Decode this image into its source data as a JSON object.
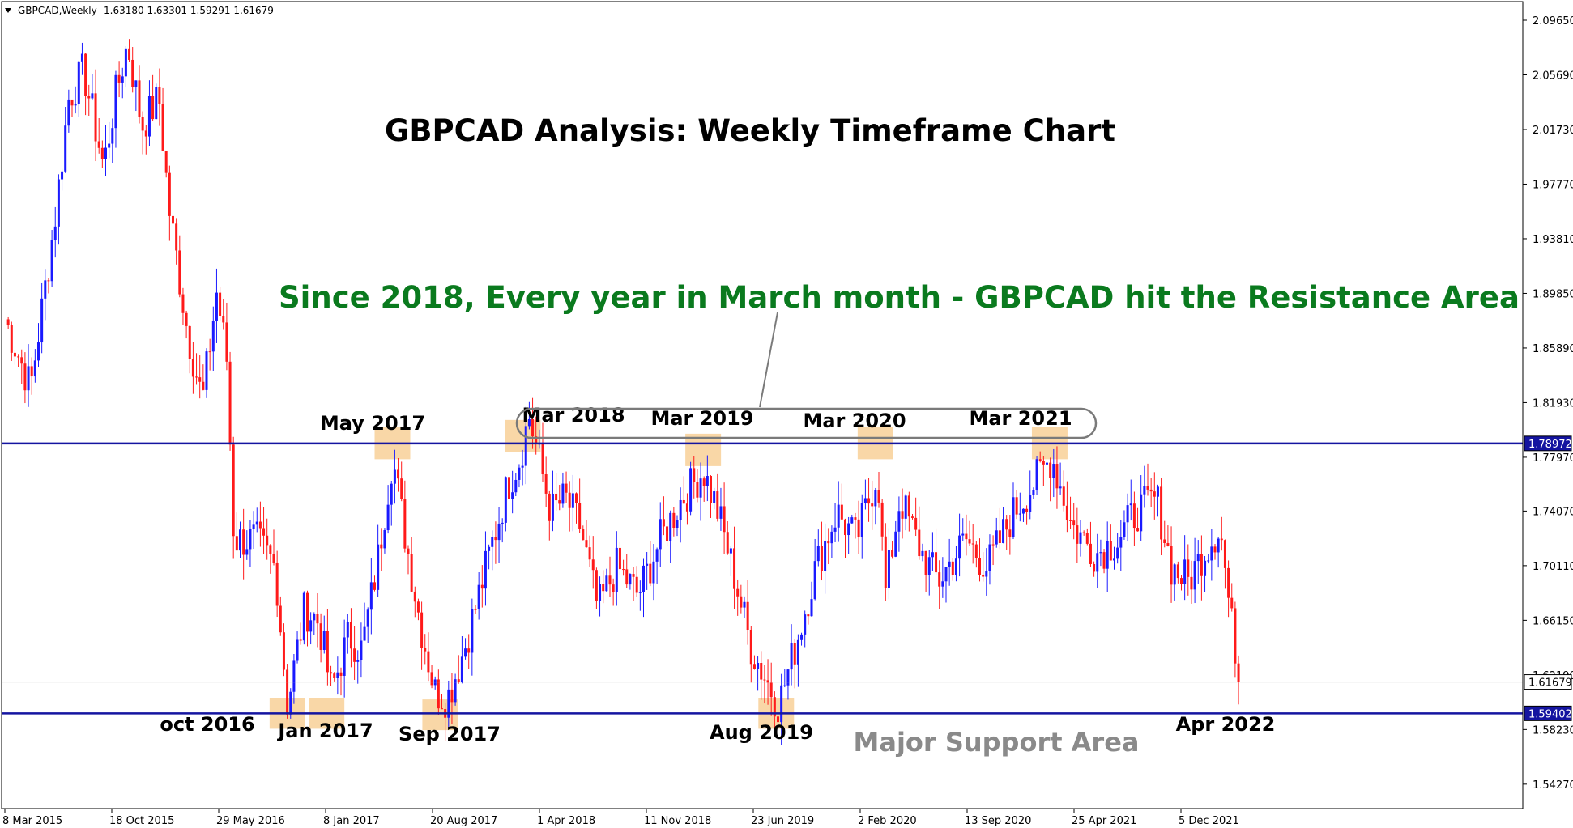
{
  "header": {
    "symbol": "GBPCAD,Weekly",
    "ohlc": "1.63180 1.63301 1.59291 1.61679"
  },
  "colors": {
    "up_candle": "#1a1aff",
    "down_candle": "#ff1a1a",
    "level_line": "#1414a0",
    "highlight_box": "#f7c98a",
    "headline_green": "#0a7a1e",
    "support_label_gray": "#8a8a8a"
  },
  "chart_data": {
    "type": "candlestick",
    "title": "GBPCAD Analysis: Weekly Timeframe Chart",
    "y_range": [
      1.525,
      2.11
    ],
    "y_ticks": [
      "2.09650",
      "2.05690",
      "2.01730",
      "1.97770",
      "1.93810",
      "1.89850",
      "1.85890",
      "1.81930",
      "1.77970",
      "1.74070",
      "1.70110",
      "1.66150",
      "1.58230",
      "1.54270"
    ],
    "x_ticks": [
      "8 Mar 2015",
      "18 Oct 2015",
      "29 May 2016",
      "8 Jan 2017",
      "20 Aug 2017",
      "1 Apr 2018",
      "11 Nov 2018",
      "23 Jun 2019",
      "2 Feb 2020",
      "13 Sep 2020",
      "25 Apr 2021",
      "5 Dec 2021"
    ],
    "price_levels": {
      "resistance": "1.78972",
      "current": "1.61679",
      "support": "1.59402",
      "current_partial_tick": "1.62190"
    },
    "price_path": [
      [
        "2015-03-08",
        1.88
      ],
      [
        "2015-05-01",
        1.83
      ],
      [
        "2015-06-20",
        1.95
      ],
      [
        "2015-07-20",
        2.04
      ],
      [
        "2015-08-20",
        2.06
      ],
      [
        "2015-10-01",
        1.99
      ],
      [
        "2015-10-25",
        2.04
      ],
      [
        "2015-11-20",
        2.08
      ],
      [
        "2015-12-20",
        2.02
      ],
      [
        "2016-01-25",
        2.04
      ],
      [
        "2016-02-15",
        1.96
      ],
      [
        "2016-03-25",
        1.87
      ],
      [
        "2016-04-25",
        1.82
      ],
      [
        "2016-05-25",
        1.9
      ],
      [
        "2016-06-15",
        1.85
      ],
      [
        "2016-06-30",
        1.72
      ],
      [
        "2016-08-15",
        1.72
      ],
      [
        "2016-09-25",
        1.7
      ],
      [
        "2016-10-20",
        1.6
      ],
      [
        "2016-11-25",
        1.67
      ],
      [
        "2016-12-25",
        1.66
      ],
      [
        "2017-01-20",
        1.61
      ],
      [
        "2017-02-25",
        1.65
      ],
      [
        "2017-03-25",
        1.64
      ],
      [
        "2017-04-25",
        1.7
      ],
      [
        "2017-05-28",
        1.78
      ],
      [
        "2017-06-25",
        1.72
      ],
      [
        "2017-07-25",
        1.66
      ],
      [
        "2017-08-25",
        1.61
      ],
      [
        "2017-09-20",
        1.605
      ],
      [
        "2017-10-25",
        1.64
      ],
      [
        "2017-11-25",
        1.68
      ],
      [
        "2017-12-25",
        1.72
      ],
      [
        "2018-01-25",
        1.76
      ],
      [
        "2018-02-20",
        1.78
      ],
      [
        "2018-03-10",
        1.81
      ],
      [
        "2018-03-30",
        1.78
      ],
      [
        "2018-04-25",
        1.74
      ],
      [
        "2018-05-25",
        1.75
      ],
      [
        "2018-06-25",
        1.73
      ],
      [
        "2018-08-01",
        1.67
      ],
      [
        "2018-09-10",
        1.7
      ],
      [
        "2018-10-25",
        1.68
      ],
      [
        "2018-12-10",
        1.72
      ],
      [
        "2019-01-25",
        1.75
      ],
      [
        "2019-03-10",
        1.77
      ],
      [
        "2019-04-10",
        1.74
      ],
      [
        "2019-05-10",
        1.7
      ],
      [
        "2019-06-20",
        1.64
      ],
      [
        "2019-08-15",
        1.6
      ],
      [
        "2019-09-25",
        1.65
      ],
      [
        "2019-11-01",
        1.7
      ],
      [
        "2019-12-15",
        1.74
      ],
      [
        "2020-01-25",
        1.72
      ],
      [
        "2020-03-10",
        1.77
      ],
      [
        "2020-03-25",
        1.68
      ],
      [
        "2020-04-25",
        1.75
      ],
      [
        "2020-06-10",
        1.71
      ],
      [
        "2020-07-15",
        1.69
      ],
      [
        "2020-09-10",
        1.72
      ],
      [
        "2020-10-25",
        1.7
      ],
      [
        "2020-12-20",
        1.74
      ],
      [
        "2021-03-10",
        1.78
      ],
      [
        "2021-04-20",
        1.73
      ],
      [
        "2021-06-10",
        1.71
      ],
      [
        "2021-07-25",
        1.72
      ],
      [
        "2021-09-01",
        1.74
      ],
      [
        "2021-10-15",
        1.75
      ],
      [
        "2021-11-15",
        1.7
      ],
      [
        "2021-12-20",
        1.69
      ],
      [
        "2022-01-20",
        1.71
      ],
      [
        "2022-02-25",
        1.73
      ],
      [
        "2022-03-20",
        1.66
      ],
      [
        "2022-04-10",
        1.617
      ]
    ]
  },
  "annotations": {
    "headline": "Since 2018, Every year in March month - GBPCAD hit the Resistance Area",
    "resistance_months": [
      "May 2017",
      "Mar 2018",
      "Mar 2019",
      "Mar 2020",
      "Mar 2021"
    ],
    "support_months": [
      "oct 2016",
      "Jan 2017",
      "Sep 2017",
      "Aug 2019",
      "Apr 2022"
    ],
    "support_area_label": "Major Support Area"
  }
}
